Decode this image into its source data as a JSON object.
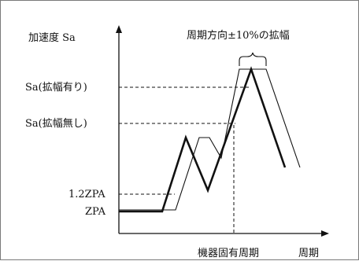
{
  "diagram": {
    "y_axis_label": "加速度 Sa",
    "x_axis_label": "周期",
    "natural_period_label": "機器固有周期",
    "broadening_note": "周期方向±10%の拡幅",
    "levels": {
      "sa_broadened": "Sa(拡幅有り)",
      "sa_unbroadened": "Sa(拡幅無し)",
      "zpa_12": "1.2ZPA",
      "zpa": "ZPA"
    },
    "curves": {
      "original": "thick",
      "broadened": "thin"
    }
  }
}
